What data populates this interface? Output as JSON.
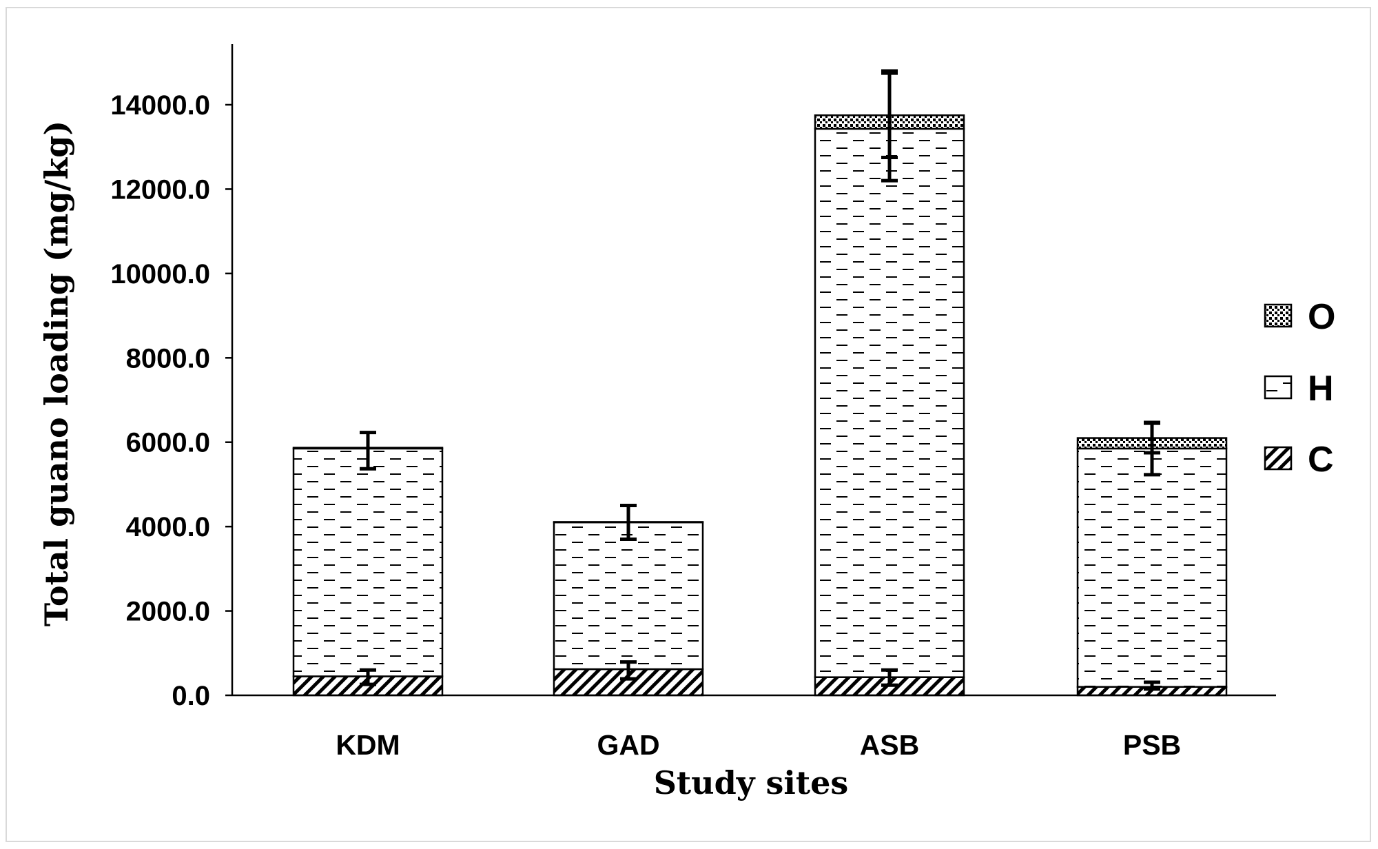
{
  "chart_data": {
    "type": "bar",
    "stacked": true,
    "categories": [
      "KDM",
      "GAD",
      "ASB",
      "PSB"
    ],
    "series": [
      {
        "name": "C",
        "pattern": "diagonal-hatch",
        "values": [
          450,
          620,
          430,
          200
        ]
      },
      {
        "name": "H",
        "pattern": "dashed-horizontal",
        "values": [
          5400,
          3480,
          13000,
          5650
        ]
      },
      {
        "name": "O",
        "pattern": "dotted",
        "values": [
          20,
          10,
          320,
          250
        ]
      }
    ],
    "error_bars": [
      {
        "series": "C",
        "center": [
          430,
          590,
          420,
          230
        ],
        "err": [
          170,
          200,
          180,
          80
        ]
      },
      {
        "series": "H",
        "center": [
          5800,
          4100,
          13500,
          5850
        ],
        "err": [
          430,
          400,
          1300,
          620
        ]
      },
      {
        "series": "O",
        "center": [
          5870,
          4110,
          13750,
          6100
        ],
        "err": [
          0,
          0,
          1000,
          350
        ]
      }
    ],
    "ylim": [
      0,
      15500
    ],
    "yticks": [
      "0.0",
      "2000.0",
      "4000.0",
      "6000.0",
      "8000.0",
      "10000.0",
      "12000.0",
      "14000.0"
    ],
    "ytick_values": [
      0,
      2000,
      4000,
      6000,
      8000,
      10000,
      12000,
      14000
    ],
    "xlabel": "Study sites",
    "ylabel": "Total guano loading (mg/kg)",
    "legend": {
      "entries": [
        "O",
        "H",
        "C"
      ],
      "placement": "right"
    },
    "grid": false,
    "colors": {
      "ink": "#000000",
      "background": "#ffffff",
      "frame": "#d9d9d9"
    }
  }
}
